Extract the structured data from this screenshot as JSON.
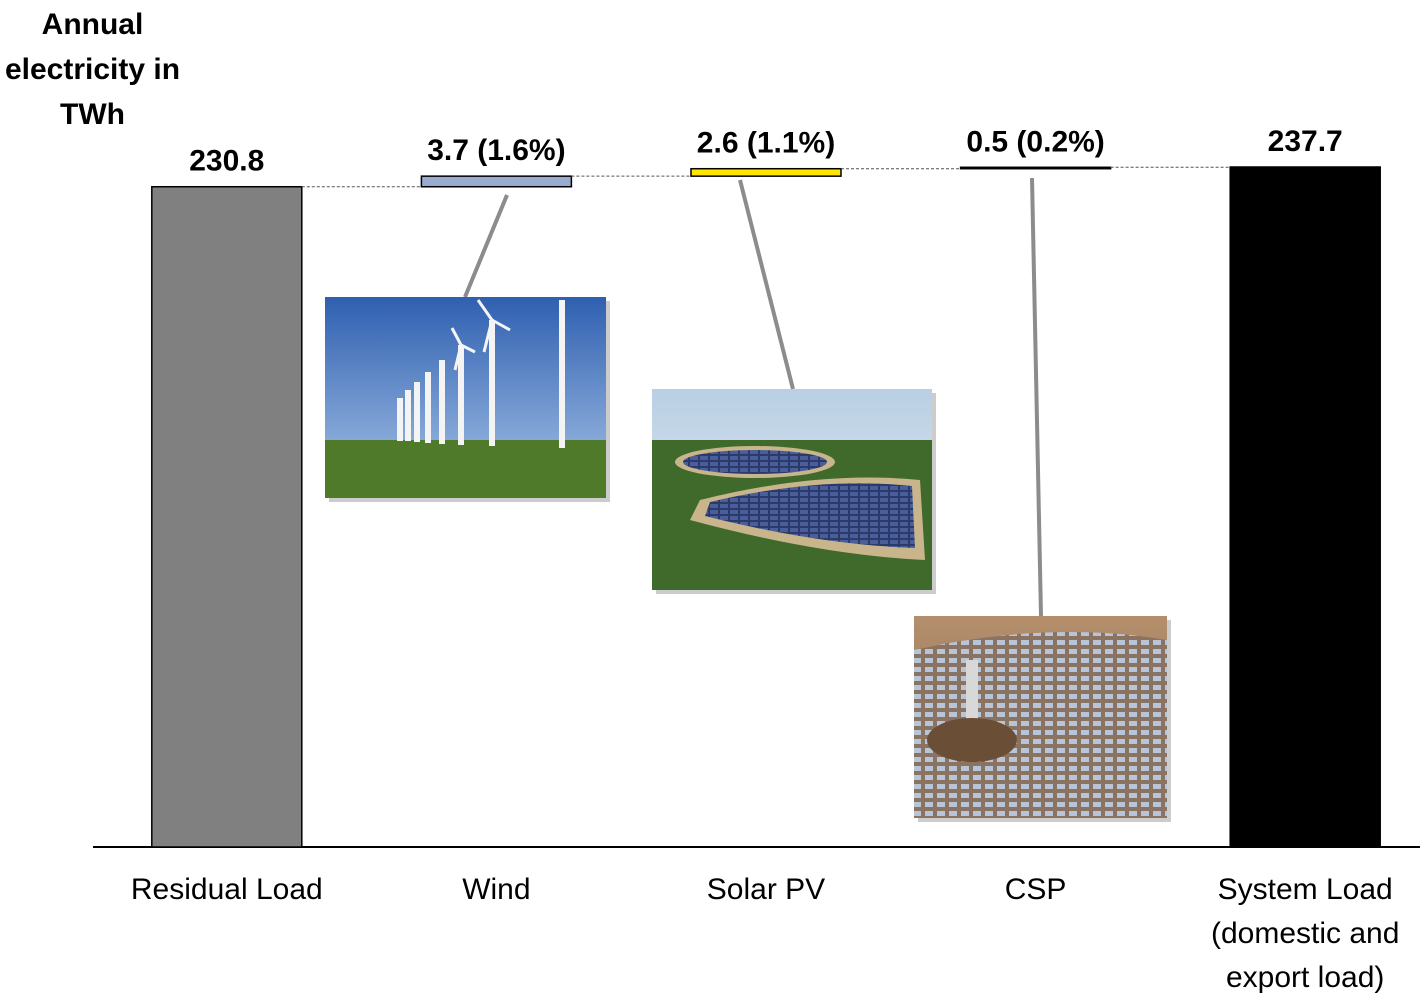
{
  "chart_data": {
    "type": "waterfall",
    "y_label": "Annual electricity in TWh",
    "categories": [
      "Residual Load",
      "Wind",
      "Solar PV",
      "CSP",
      "System Load (domestic and export load)"
    ],
    "measures": [
      "absolute",
      "relative",
      "relative",
      "relative",
      "total"
    ],
    "values": [
      230.8,
      3.7,
      2.6,
      0.5,
      237.7
    ],
    "value_labels": [
      "230.8",
      "3.7 (1.6%)",
      "2.6 (1.1%)",
      "0.5 (0.2%)",
      "237.7"
    ],
    "colors": [
      "#808080",
      "#9aabd0",
      "#ffe600",
      "#000000",
      "#000000"
    ]
  }
}
